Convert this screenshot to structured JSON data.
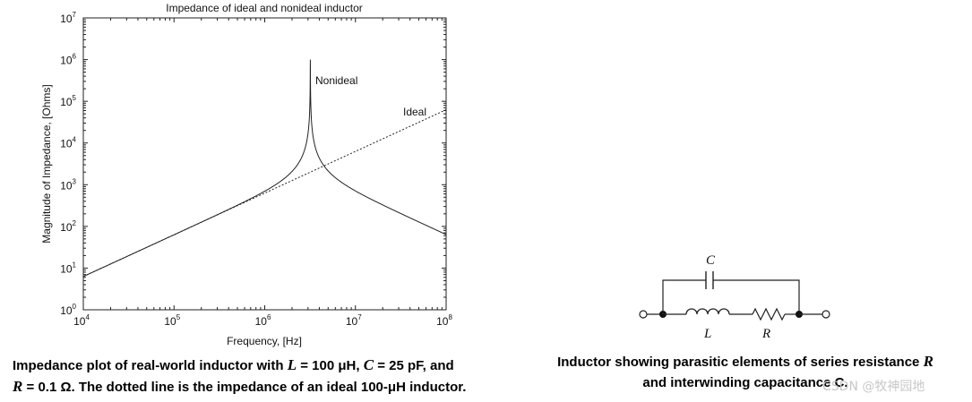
{
  "chart_data": {
    "type": "line",
    "title": "Impedance of ideal and nonideal inductor",
    "xlabel": "Frequency, [Hz]",
    "ylabel": "Magnitude of Impedance, [Ohms]",
    "xscale": "log",
    "yscale": "log",
    "xlim": [
      10000,
      100000000
    ],
    "ylim": [
      1,
      10000000
    ],
    "x_ticks": [
      {
        "base": "10",
        "exp": "4"
      },
      {
        "base": "10",
        "exp": "5"
      },
      {
        "base": "10",
        "exp": "6"
      },
      {
        "base": "10",
        "exp": "7"
      },
      {
        "base": "10",
        "exp": "8"
      }
    ],
    "y_ticks": [
      {
        "base": "10",
        "exp": "0"
      },
      {
        "base": "10",
        "exp": "1"
      },
      {
        "base": "10",
        "exp": "2"
      },
      {
        "base": "10",
        "exp": "3"
      },
      {
        "base": "10",
        "exp": "4"
      },
      {
        "base": "10",
        "exp": "5"
      },
      {
        "base": "10",
        "exp": "6"
      },
      {
        "base": "10",
        "exp": "7"
      }
    ],
    "grid": false,
    "parameters": {
      "L_henry": 0.0001,
      "C_farad": 2.5e-11,
      "R_ohm": 0.1
    },
    "series": [
      {
        "name": "Nonideal",
        "style": "solid",
        "model": "|(R + jwL) || 1/(jwC)|",
        "peak_value": 1000000,
        "peak_frequency": 3183000
      },
      {
        "name": "Ideal",
        "style": "dotted",
        "model": "wL"
      }
    ],
    "annotations": [
      "Nonideal",
      "Ideal"
    ]
  },
  "captions": {
    "left_line1_a": "Impedance plot of real-world inductor with ",
    "left_L": "L",
    "left_line1_b": " = 100 μH, ",
    "left_C": "C",
    "left_line1_c": " = 25 pF, and",
    "left_R": "R",
    "left_line2": " = 0.1 Ω. The dotted line is the impedance of an ideal 100-μH inductor.",
    "right_line1_a": "Inductor showing parasitic elements of series resistance ",
    "right_R": "R",
    "right_line2": "and interwinding capacitance C."
  },
  "circuit": {
    "label_C": "C",
    "label_L": "L",
    "label_R": "R"
  },
  "watermark": "CSDN @牧神园地"
}
